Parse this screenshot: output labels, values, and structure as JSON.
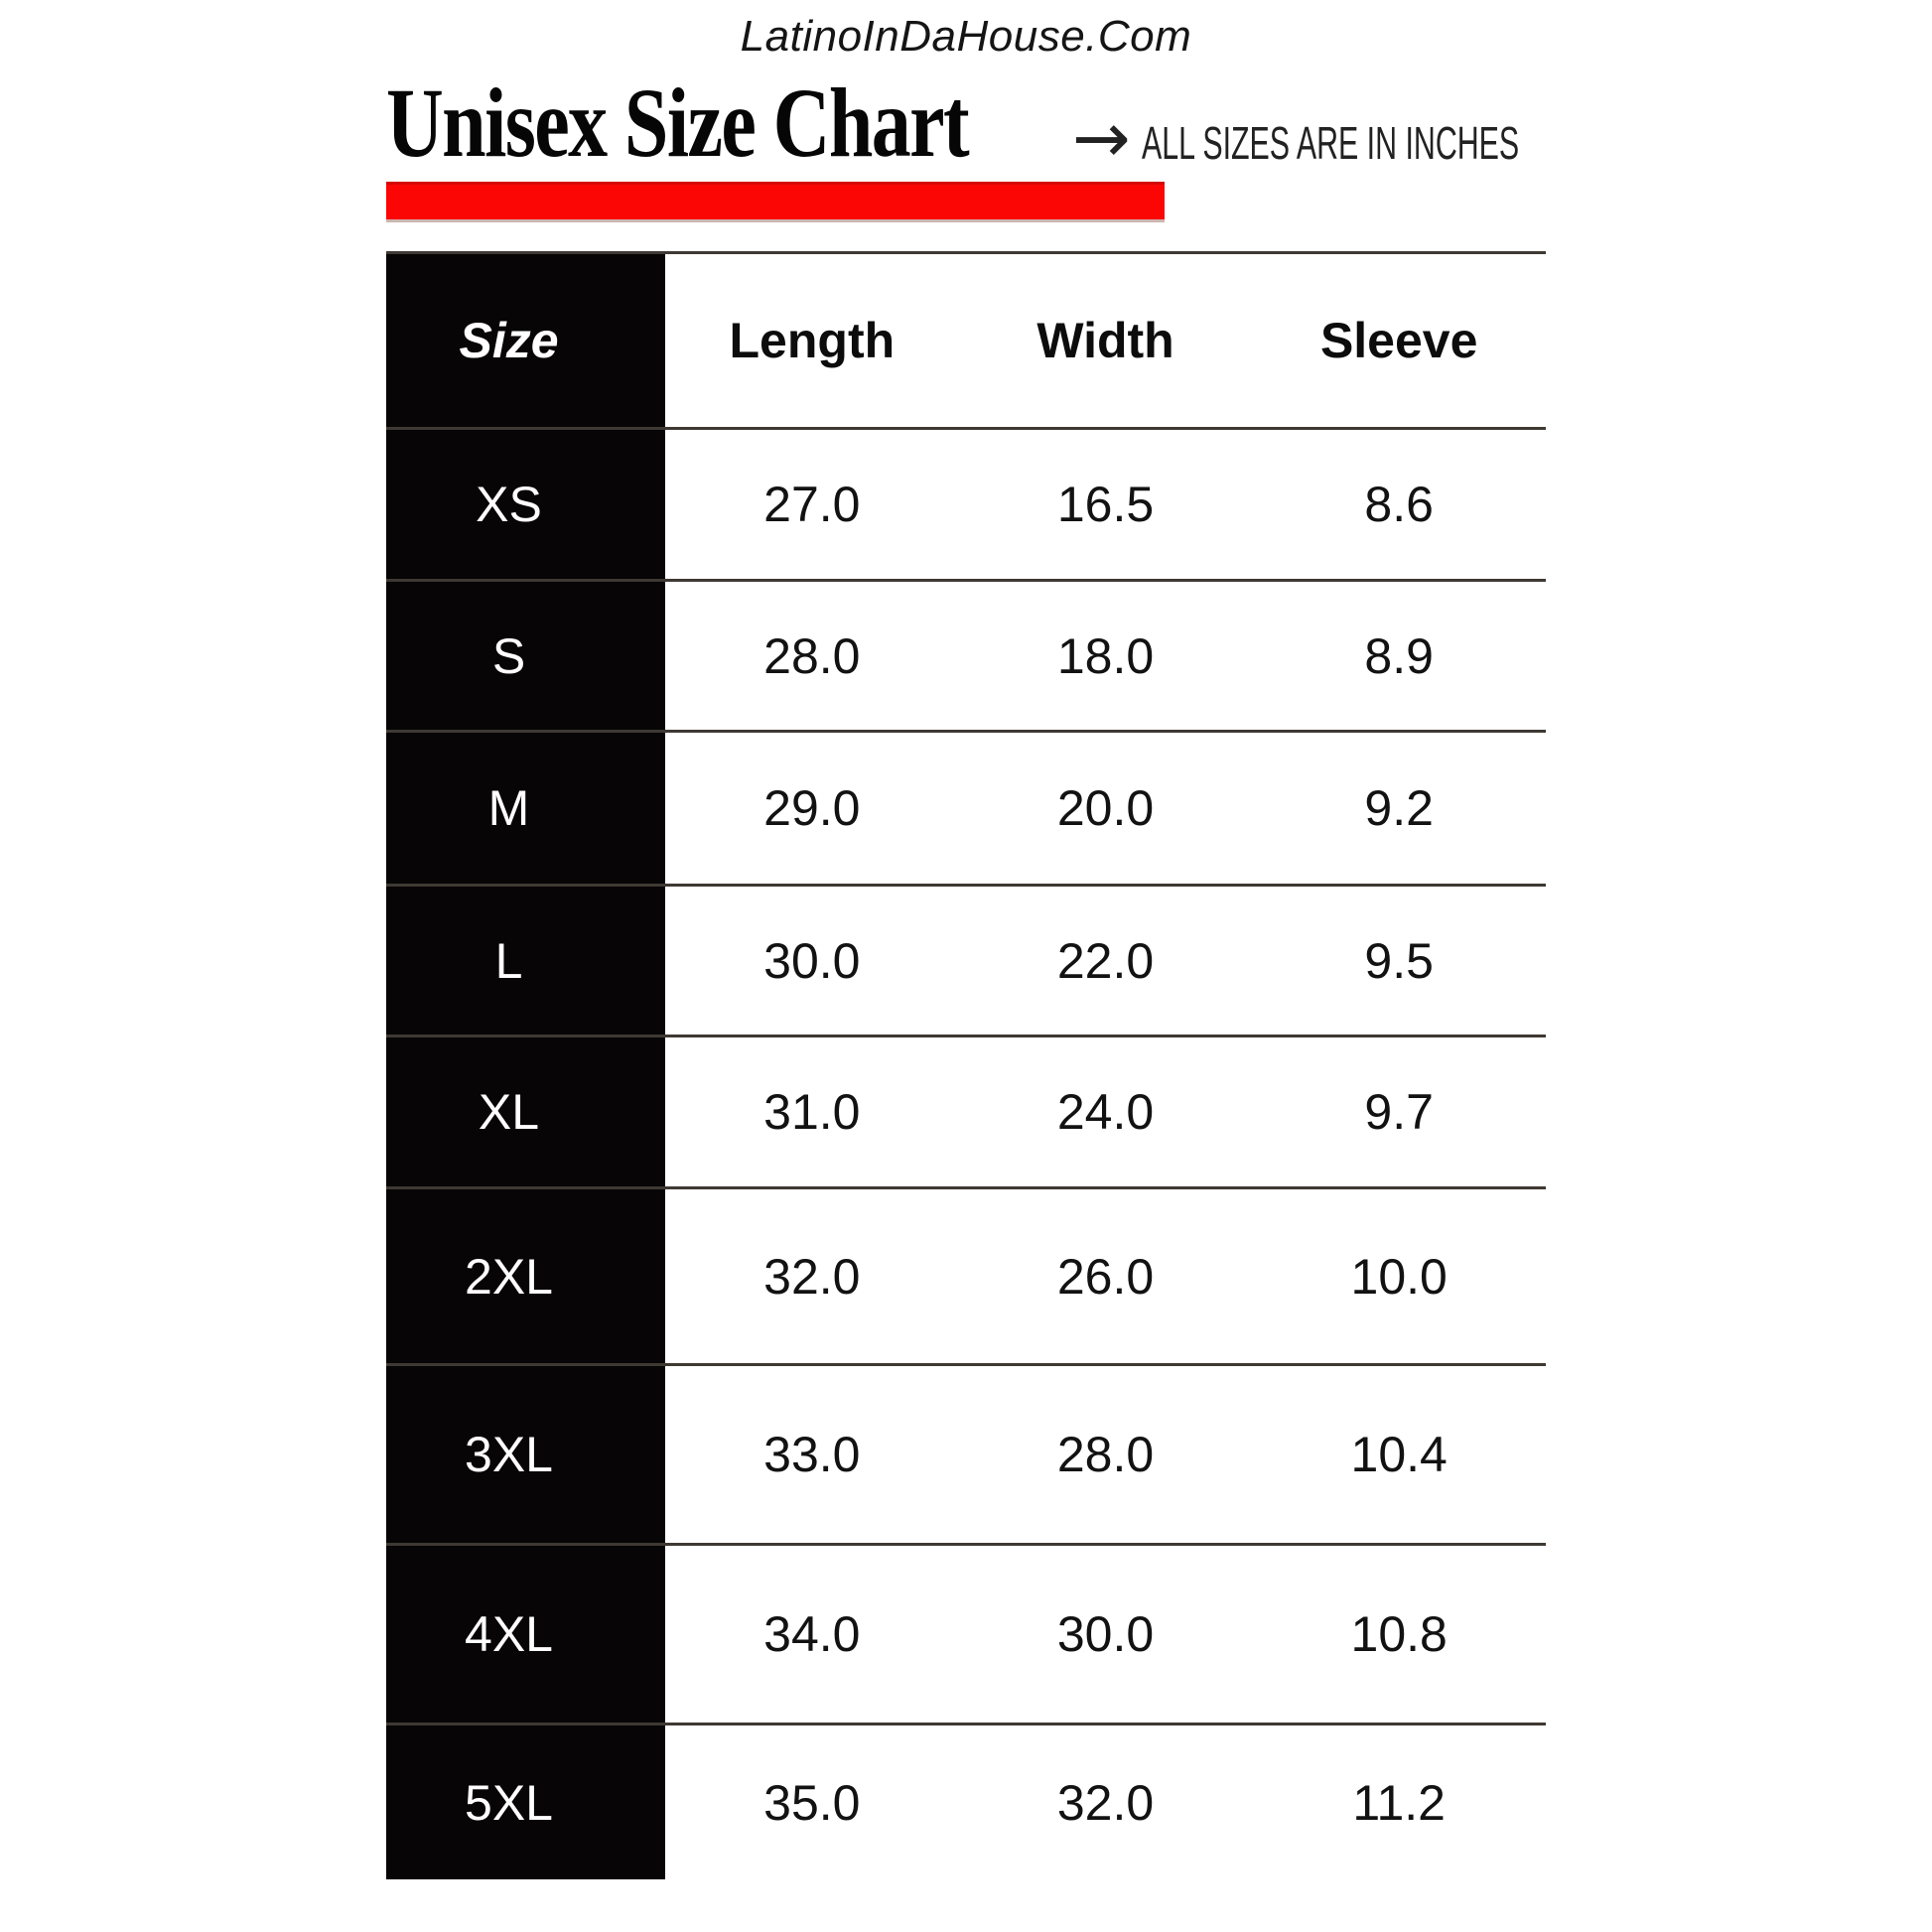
{
  "site_header": {
    "text": "LatinoInDaHouse.Com"
  },
  "title_block": {
    "title": "Unisex Size Chart",
    "arrow": "→",
    "note": "ALL SIZES ARE IN INCHES"
  },
  "colors": {
    "accent_red": "#fb0605",
    "table_black": "#070505",
    "rule_line": "#3e3933",
    "background": "#ffffff"
  },
  "chart_data": {
    "type": "table",
    "title": "Unisex Size Chart",
    "unit_note": "ALL SIZES ARE IN INCHES",
    "source": "LatinoInDaHouse.Com",
    "columns": [
      "Size",
      "Length",
      "Width",
      "Sleeve"
    ],
    "rows": [
      {
        "size": "XS",
        "length": "27.0",
        "width": "16.5",
        "sleeve": "8.6"
      },
      {
        "size": "S",
        "length": "28.0",
        "width": "18.0",
        "sleeve": "8.9"
      },
      {
        "size": "M",
        "length": "29.0",
        "width": "20.0",
        "sleeve": "9.2"
      },
      {
        "size": "L",
        "length": "30.0",
        "width": "22.0",
        "sleeve": "9.5"
      },
      {
        "size": "XL",
        "length": "31.0",
        "width": "24.0",
        "sleeve": "9.7"
      },
      {
        "size": "2XL",
        "length": "32.0",
        "width": "26.0",
        "sleeve": "10.0"
      },
      {
        "size": "3XL",
        "length": "33.0",
        "width": "28.0",
        "sleeve": "10.4"
      },
      {
        "size": "4XL",
        "length": "34.0",
        "width": "30.0",
        "sleeve": "10.8"
      },
      {
        "size": "5XL",
        "length": "35.0",
        "width": "32.0",
        "sleeve": "11.2"
      }
    ]
  }
}
